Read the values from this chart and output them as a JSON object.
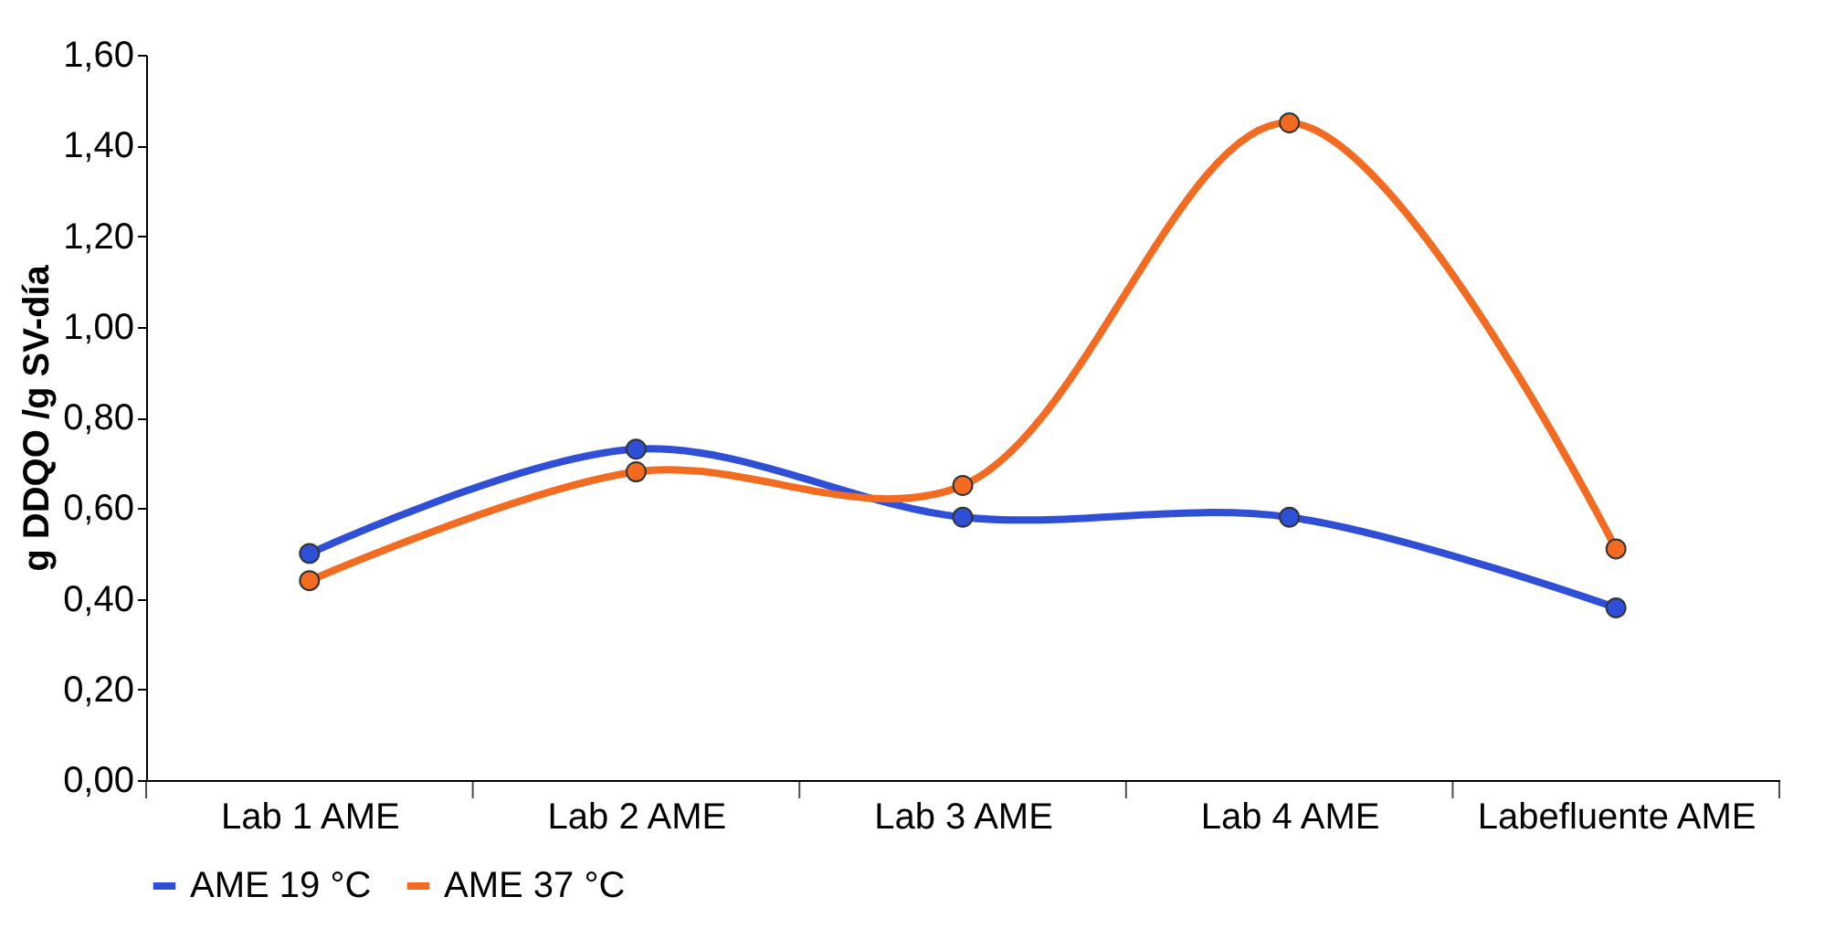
{
  "chart_data": {
    "type": "line",
    "ylabel": "g DDQO /g SV-día",
    "categories": [
      "Lab 1 AME",
      "Lab 2 AME",
      "Lab 3 AME",
      "Lab 4 AME",
      "Labefluente AME"
    ],
    "series": [
      {
        "name": "AME 19 °C",
        "color": "#2e4fd6",
        "values": [
          0.5,
          0.73,
          0.58,
          0.58,
          0.38
        ]
      },
      {
        "name": "AME 37 °C",
        "color": "#f26b21",
        "values": [
          0.44,
          0.68,
          0.65,
          1.45,
          0.51
        ]
      }
    ],
    "ylim": [
      0,
      1.6
    ],
    "yticks": [
      {
        "value": 0,
        "label": "0,00"
      },
      {
        "value": 0.2,
        "label": "0,20"
      },
      {
        "value": 0.4,
        "label": "0,40"
      },
      {
        "value": 0.6,
        "label": "0,60"
      },
      {
        "value": 0.8,
        "label": "0,80"
      },
      {
        "value": 1.0,
        "label": "1,00"
      },
      {
        "value": 1.2,
        "label": "1,20"
      },
      {
        "value": 1.4,
        "label": "1,40"
      },
      {
        "value": 1.6,
        "label": "1,60"
      }
    ],
    "grid": false,
    "legend": "bottom",
    "marker": "circle",
    "line_style": "solid"
  }
}
